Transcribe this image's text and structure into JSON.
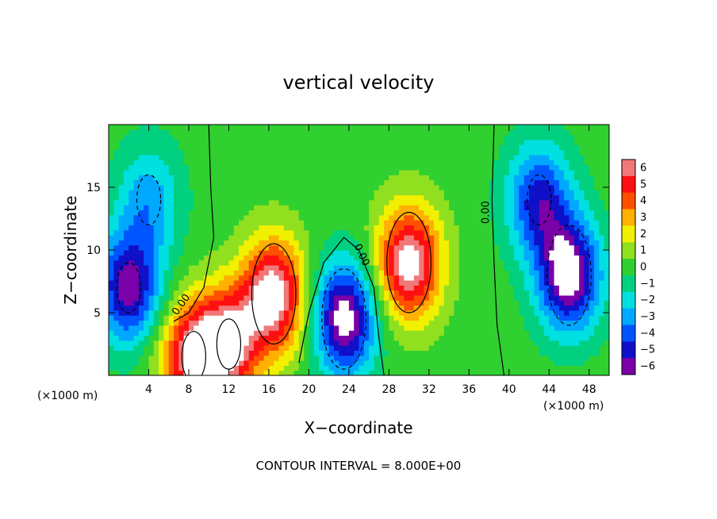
{
  "chart_data": {
    "type": "heatmap",
    "title": "vertical velocity",
    "xlabel": "X−coordinate",
    "ylabel": "Z−coordinate",
    "x_unit": "(×1000 m)",
    "y_unit": "(×1000 m)",
    "xlim": [
      0,
      50
    ],
    "ylim": [
      0,
      20
    ],
    "x_ticks": [
      "4",
      "8",
      "12",
      "16",
      "20",
      "24",
      "28",
      "32",
      "36",
      "40",
      "44",
      "48"
    ],
    "y_ticks": [
      "5",
      "10",
      "15"
    ],
    "colorbar": {
      "ticks": [
        "6",
        "5",
        "4",
        "3",
        "2",
        "1",
        "0",
        "−1",
        "−2",
        "−3",
        "−4",
        "−5",
        "−6"
      ],
      "range": [
        -6,
        6
      ],
      "colors": [
        "#7a00a8",
        "#1010c8",
        "#0055ff",
        "#00a8ff",
        "#00e0e0",
        "#00d080",
        "#30d030",
        "#90e020",
        "#f0f000",
        "#ffb000",
        "#ff5000",
        "#ff1010",
        "#f07878"
      ]
    },
    "contour_interval_label": "CONTOUR INTERVAL = 8.000E+00",
    "contour_labels": [
      "0.00",
      "0.00",
      "0.00"
    ],
    "features": [
      {
        "x": 30,
        "z": 9,
        "value": 7,
        "sign": "updraft"
      },
      {
        "x": 16.5,
        "z": 6.5,
        "value": 7,
        "sign": "updraft"
      },
      {
        "x": 8.5,
        "z": 1.5,
        "value": 6,
        "sign": "updraft"
      },
      {
        "x": 12,
        "z": 2.5,
        "value": 6,
        "sign": "updraft"
      },
      {
        "x": 23.5,
        "z": 4.5,
        "value": -7,
        "sign": "downdraft"
      },
      {
        "x": 46,
        "z": 8,
        "value": -7,
        "sign": "downdraft"
      },
      {
        "x": 2,
        "z": 7,
        "value": -6,
        "sign": "downdraft"
      },
      {
        "x": 43,
        "z": 14,
        "value": -5,
        "sign": "downdraft"
      },
      {
        "x": 4,
        "z": 14,
        "value": -3,
        "sign": "downdraft"
      },
      {
        "x": 20,
        "z": 3,
        "value": 0.5,
        "sign": "weak"
      },
      {
        "x": 6,
        "z": 2,
        "value": 0.5,
        "sign": "weak"
      }
    ]
  }
}
